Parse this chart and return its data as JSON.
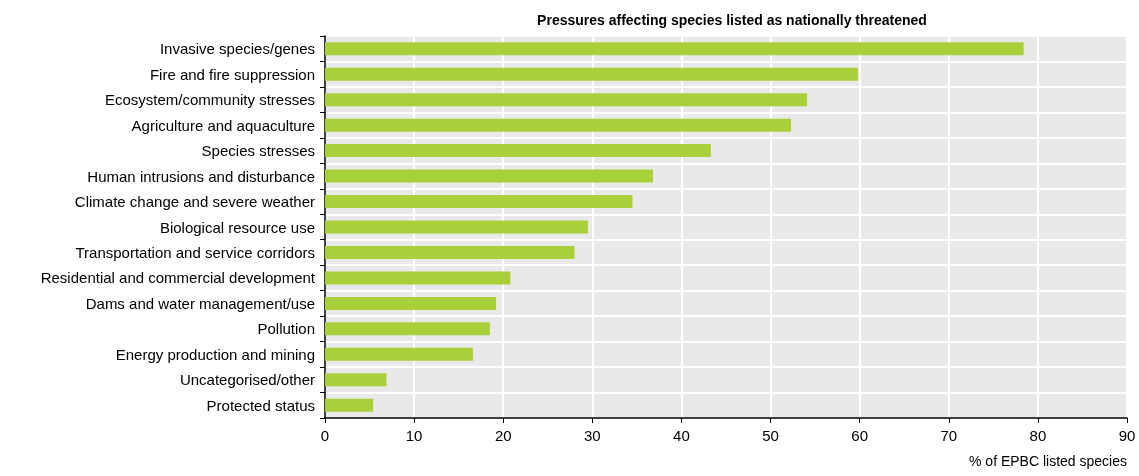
{
  "chart_data": {
    "type": "bar",
    "title": "Pressures affecting species listed as nationally threatened",
    "xlabel": "% of EPBC listed species",
    "orientation": "horizontal",
    "categories": [
      "Invasive species/genes",
      "Fire and fire suppression",
      "Ecosystem/community stresses",
      "Agriculture and aquaculture",
      "Species stresses",
      "Human intrusions and disturbance",
      "Climate change and severe weather",
      "Biological resource use",
      "Transportation and service corridors",
      "Residential and commercial development",
      "Dams and water management/use",
      "Pollution",
      "Energy production and mining",
      "Uncategorised/other",
      "Protected status"
    ],
    "values": [
      78.4,
      59.8,
      54.1,
      52.3,
      43.3,
      36.8,
      34.5,
      29.5,
      28.0,
      20.8,
      19.2,
      18.5,
      16.6,
      6.9,
      5.4
    ],
    "color": "#a9cf3b",
    "xlim": [
      0,
      90
    ],
    "xticks": [
      0,
      10,
      20,
      30,
      40,
      50,
      60,
      70,
      80,
      90
    ],
    "grid": true
  }
}
